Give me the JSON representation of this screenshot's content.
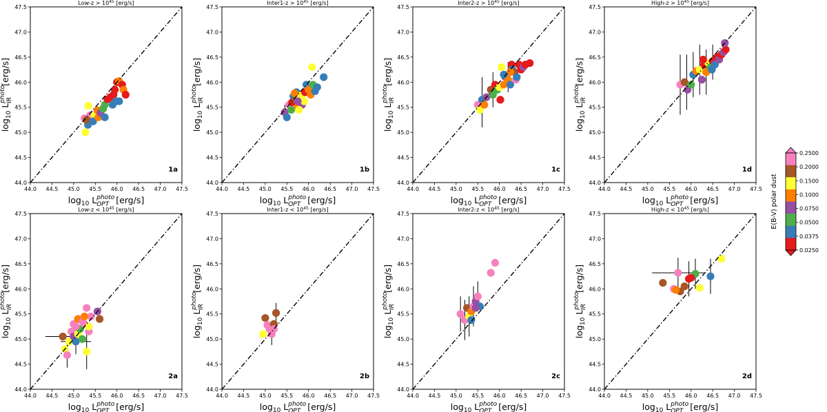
{
  "axes": {
    "xlabel_main": "log",
    "xlabel_sub": "10",
    "xlabel_L": " L",
    "xlabel_sup": "photo",
    "xlabel_subscript": "OPT",
    "xlabel_unit": " [erg/s]",
    "ylabel_main": "log",
    "ylabel_sub": "10",
    "ylabel_L": " L",
    "ylabel_sup": "photo",
    "ylabel_subscript": "IR",
    "ylabel_unit": " [erg/s]"
  },
  "colorbar": {
    "label": "E(B-V) polar dust",
    "ticks": [
      "0.2500",
      "0.2000",
      "0.1500",
      "0.1000",
      "0.0750",
      "0.0500",
      "0.0375",
      "0.0250"
    ],
    "colors": [
      "#f781bf",
      "#a65628",
      "#ffff33",
      "#ff7f00",
      "#984ea3",
      "#4daf4a",
      "#377eb8",
      "#e41a1c"
    ]
  },
  "chart_data": [
    {
      "id": "1a",
      "type": "scatter",
      "title": "Low-z > 10^45 [erg/s]",
      "title_base": "Low-z > 10",
      "title_exp": "45",
      "title_unit": " [erg/s]",
      "tag": "1a",
      "xlim": [
        44.0,
        47.5
      ],
      "ylim": [
        44.0,
        47.5
      ],
      "xticks": [
        "44.0",
        "44.5",
        "45.0",
        "45.5",
        "46.0",
        "46.5",
        "47.0",
        "47.5"
      ],
      "yticks": [
        "44.0",
        "44.5",
        "45.0",
        "45.5",
        "46.0",
        "46.5",
        "47.0",
        "47.5"
      ],
      "points": [
        [
          45.27,
          45.0,
          2
        ],
        [
          45.34,
          45.53,
          2
        ],
        [
          45.25,
          45.28,
          0
        ],
        [
          45.38,
          45.34,
          0
        ],
        [
          45.33,
          45.15,
          6
        ],
        [
          45.3,
          45.25,
          1
        ],
        [
          45.48,
          45.33,
          2
        ],
        [
          45.45,
          45.22,
          6
        ],
        [
          45.55,
          45.44,
          3
        ],
        [
          45.57,
          45.3,
          3
        ],
        [
          45.62,
          45.39,
          4
        ],
        [
          45.68,
          45.47,
          5
        ],
        [
          45.72,
          45.3,
          6
        ],
        [
          45.72,
          45.55,
          5
        ],
        [
          45.78,
          45.66,
          7
        ],
        [
          45.85,
          45.7,
          7
        ],
        [
          45.9,
          45.55,
          6
        ],
        [
          45.92,
          45.75,
          7
        ],
        [
          45.95,
          45.85,
          7
        ],
        [
          46.0,
          46.0,
          7
        ],
        [
          46.05,
          46.02,
          3
        ],
        [
          46.12,
          45.95,
          7
        ],
        [
          46.15,
          45.85,
          3
        ],
        [
          46.2,
          45.75,
          7
        ],
        [
          45.98,
          45.62,
          6
        ],
        [
          46.05,
          45.62,
          6
        ]
      ],
      "errors": []
    },
    {
      "id": "1b",
      "type": "scatter",
      "title": "Inter1-z > 10^45 [erg/s]",
      "title_base": "Inter1-z > 10",
      "title_exp": "45",
      "title_unit": " [erg/s]",
      "tag": "1b",
      "xlim": [
        44.0,
        47.5
      ],
      "ylim": [
        44.0,
        47.5
      ],
      "xticks": [
        "44.0",
        "44.5",
        "45.0",
        "45.5",
        "46.0",
        "46.5",
        "47.0",
        "47.5"
      ],
      "yticks": [
        "44.0",
        "44.5",
        "45.0",
        "45.5",
        "46.0",
        "46.5",
        "47.0",
        "47.5"
      ],
      "points": [
        [
          45.45,
          45.4,
          4
        ],
        [
          45.5,
          45.3,
          6
        ],
        [
          45.55,
          45.55,
          0
        ],
        [
          45.6,
          45.45,
          5
        ],
        [
          45.62,
          45.6,
          7
        ],
        [
          45.65,
          45.72,
          6
        ],
        [
          45.7,
          45.65,
          1
        ],
        [
          45.75,
          45.5,
          3
        ],
        [
          45.72,
          45.8,
          6
        ],
        [
          45.8,
          45.7,
          2
        ],
        [
          45.85,
          45.55,
          4
        ],
        [
          45.78,
          45.45,
          2
        ],
        [
          45.85,
          45.75,
          2
        ],
        [
          45.9,
          45.62,
          2
        ],
        [
          45.92,
          45.8,
          7
        ],
        [
          45.95,
          45.95,
          6
        ],
        [
          46.0,
          45.85,
          3
        ],
        [
          46.05,
          45.75,
          3
        ],
        [
          46.08,
          46.3,
          2
        ],
        [
          46.1,
          45.95,
          5
        ],
        [
          46.15,
          45.82,
          6
        ],
        [
          46.2,
          45.9,
          6
        ],
        [
          46.35,
          46.1,
          6
        ],
        [
          45.68,
          45.78,
          3
        ],
        [
          45.75,
          45.62,
          4
        ]
      ],
      "errors": [
        [
          45.45,
          45.4,
          0,
          0.15
        ]
      ]
    },
    {
      "id": "1c",
      "type": "scatter",
      "title": "Inter2-z > 10^45 [erg/s]",
      "title_base": "Inter2-z > 10",
      "title_exp": "45",
      "title_unit": " [erg/s]",
      "tag": "1c",
      "xlim": [
        44.0,
        47.5
      ],
      "ylim": [
        44.0,
        47.5
      ],
      "xticks": [
        "44.0",
        "44.5",
        "45.0",
        "45.5",
        "46.0",
        "46.5",
        "47.0",
        "47.5"
      ],
      "yticks": [
        "44.0",
        "44.5",
        "45.0",
        "45.5",
        "46.0",
        "46.5",
        "47.0",
        "47.5"
      ],
      "points": [
        [
          45.5,
          45.55,
          0
        ],
        [
          45.55,
          45.45,
          2
        ],
        [
          45.6,
          45.65,
          6
        ],
        [
          45.65,
          45.55,
          3
        ],
        [
          45.7,
          45.7,
          4
        ],
        [
          45.8,
          45.85,
          1
        ],
        [
          45.85,
          45.75,
          5
        ],
        [
          45.9,
          45.95,
          7
        ],
        [
          45.95,
          45.85,
          5
        ],
        [
          46.0,
          45.9,
          2
        ],
        [
          46.02,
          45.65,
          7
        ],
        [
          46.05,
          46.3,
          2
        ],
        [
          46.1,
          45.95,
          3
        ],
        [
          46.15,
          46.1,
          4
        ],
        [
          46.2,
          46.05,
          3
        ],
        [
          46.25,
          45.95,
          6
        ],
        [
          46.28,
          46.35,
          7
        ],
        [
          46.3,
          46.25,
          6
        ],
        [
          46.35,
          46.2,
          1
        ],
        [
          46.38,
          46.05,
          0
        ],
        [
          46.4,
          46.1,
          6
        ],
        [
          46.45,
          46.35,
          7
        ],
        [
          46.5,
          46.25,
          7
        ],
        [
          46.55,
          46.3,
          4
        ],
        [
          46.6,
          46.35,
          7
        ],
        [
          46.7,
          46.38,
          7
        ],
        [
          46.25,
          46.2,
          3
        ],
        [
          46.1,
          46.15,
          6
        ]
      ],
      "errors": [
        [
          45.6,
          45.6,
          0,
          0.5
        ],
        [
          45.85,
          45.85,
          0,
          0.35
        ],
        [
          46.2,
          46.1,
          0,
          0.3
        ]
      ]
    },
    {
      "id": "1d",
      "type": "scatter",
      "title": "High-z > 10^45 [erg/s]",
      "title_base": "High-z > 10",
      "title_exp": "45",
      "title_unit": " [erg/s]",
      "tag": "1d",
      "xlim": [
        44.0,
        47.5
      ],
      "ylim": [
        44.0,
        47.5
      ],
      "xticks": [
        "44.0",
        "44.5",
        "45.0",
        "45.5",
        "46.0",
        "46.5",
        "47.0",
        "47.5"
      ],
      "yticks": [
        "44.0",
        "44.5",
        "45.0",
        "45.5",
        "46.0",
        "46.5",
        "47.0",
        "47.5"
      ],
      "points": [
        [
          45.75,
          45.95,
          0
        ],
        [
          45.85,
          46.0,
          1
        ],
        [
          45.92,
          45.85,
          4
        ],
        [
          46.0,
          45.95,
          5
        ],
        [
          46.05,
          46.15,
          6
        ],
        [
          46.12,
          46.22,
          3
        ],
        [
          46.2,
          46.25,
          2
        ],
        [
          46.25,
          46.05,
          4
        ],
        [
          46.3,
          46.35,
          7
        ],
        [
          46.35,
          46.2,
          3
        ],
        [
          46.4,
          46.38,
          2
        ],
        [
          46.45,
          46.3,
          5
        ],
        [
          46.5,
          46.42,
          7
        ],
        [
          46.55,
          46.35,
          6
        ],
        [
          46.6,
          46.5,
          7
        ],
        [
          46.65,
          46.45,
          4
        ],
        [
          46.7,
          46.55,
          7
        ],
        [
          46.75,
          46.6,
          4
        ],
        [
          46.8,
          46.65,
          7
        ],
        [
          46.78,
          46.78,
          4
        ],
        [
          46.28,
          46.45,
          7
        ],
        [
          46.48,
          46.25,
          6
        ]
      ],
      "errors": [
        [
          45.75,
          45.95,
          0,
          0.6
        ],
        [
          45.9,
          46.0,
          0,
          0.55
        ],
        [
          46.05,
          46.15,
          0,
          0.45
        ],
        [
          46.2,
          46.25,
          0,
          0.5
        ],
        [
          46.35,
          46.2,
          0,
          0.45
        ],
        [
          46.5,
          46.4,
          0,
          0.35
        ]
      ]
    },
    {
      "id": "2a",
      "type": "scatter",
      "title": "Low-z < 10^45 [erg/s]",
      "title_base": "Low-z < 10",
      "title_exp": "45",
      "title_unit": " [erg/s]",
      "tag": "2a",
      "xlim": [
        44.0,
        47.5
      ],
      "ylim": [
        44.0,
        47.5
      ],
      "xticks": [
        "44.0",
        "44.5",
        "45.0",
        "45.5",
        "46.0",
        "46.5",
        "47.0",
        "47.5"
      ],
      "yticks": [
        "44.0",
        "44.5",
        "45.0",
        "45.5",
        "46.0",
        "46.5",
        "47.0",
        "47.5"
      ],
      "points": [
        [
          44.75,
          45.05,
          1
        ],
        [
          44.8,
          44.8,
          2
        ],
        [
          44.85,
          44.68,
          0
        ],
        [
          44.9,
          44.95,
          2
        ],
        [
          44.95,
          45.15,
          0
        ],
        [
          45.0,
          45.05,
          4
        ],
        [
          45.0,
          45.3,
          0
        ],
        [
          45.05,
          44.95,
          6
        ],
        [
          45.1,
          45.1,
          2
        ],
        [
          45.1,
          45.4,
          3
        ],
        [
          45.15,
          45.2,
          5
        ],
        [
          45.2,
          45.0,
          5
        ],
        [
          45.2,
          45.35,
          0
        ],
        [
          45.25,
          45.3,
          0
        ],
        [
          45.3,
          45.62,
          0
        ],
        [
          45.35,
          45.15,
          0
        ],
        [
          45.3,
          44.75,
          2
        ],
        [
          45.35,
          45.25,
          2
        ],
        [
          45.4,
          45.45,
          0
        ],
        [
          45.55,
          45.55,
          4
        ],
        [
          45.6,
          45.4,
          1
        ],
        [
          45.05,
          45.25,
          0
        ],
        [
          45.25,
          45.45,
          3
        ]
      ],
      "errors": [
        [
          44.75,
          45.05,
          0.4,
          0
        ],
        [
          45.05,
          44.95,
          0.35,
          0.25
        ],
        [
          45.3,
          44.75,
          0,
          0.35
        ],
        [
          44.85,
          44.68,
          0,
          0.25
        ]
      ]
    },
    {
      "id": "2b",
      "type": "scatter",
      "title": "Inter1-z < 10^45 [erg/s]",
      "title_base": "Inter1-z < 10",
      "title_exp": "45",
      "title_unit": " [erg/s]",
      "tag": "2b",
      "xlim": [
        44.0,
        47.5
      ],
      "ylim": [
        44.0,
        47.5
      ],
      "xticks": [
        "44.0",
        "44.5",
        "45.0",
        "45.5",
        "46.0",
        "46.5",
        "47.0",
        "47.5"
      ],
      "yticks": [
        "44.0",
        "44.5",
        "45.0",
        "45.5",
        "46.0",
        "46.5",
        "47.0",
        "47.5"
      ],
      "points": [
        [
          44.95,
          45.1,
          2
        ],
        [
          45.0,
          45.42,
          1
        ],
        [
          45.05,
          45.28,
          0
        ],
        [
          45.1,
          45.2,
          0
        ],
        [
          45.15,
          45.1,
          0
        ],
        [
          45.2,
          45.3,
          1
        ],
        [
          45.25,
          45.52,
          1
        ],
        [
          45.2,
          45.2,
          0
        ]
      ],
      "errors": [
        [
          45.15,
          45.1,
          0,
          0.22
        ],
        [
          45.25,
          45.52,
          0,
          0.2
        ]
      ]
    },
    {
      "id": "2c",
      "type": "scatter",
      "title": "Inter2-z < 10^45 [erg/s]",
      "title_base": "Inter2-z < 10",
      "title_exp": "45",
      "title_unit": " [erg/s]",
      "tag": "2c",
      "xlim": [
        44.0,
        47.5
      ],
      "ylim": [
        44.0,
        47.5
      ],
      "xticks": [
        "44.0",
        "44.5",
        "45.0",
        "45.5",
        "46.0",
        "46.5",
        "47.0",
        "47.5"
      ],
      "yticks": [
        "44.0",
        "44.5",
        "45.0",
        "45.5",
        "46.0",
        "46.5",
        "47.0",
        "47.5"
      ],
      "points": [
        [
          45.1,
          45.5,
          0
        ],
        [
          45.2,
          45.38,
          0
        ],
        [
          45.25,
          45.62,
          1
        ],
        [
          45.3,
          45.45,
          2
        ],
        [
          45.35,
          45.55,
          3
        ],
        [
          45.4,
          45.65,
          0
        ],
        [
          45.45,
          45.75,
          4
        ],
        [
          45.5,
          45.85,
          0
        ],
        [
          45.55,
          45.65,
          6
        ],
        [
          45.45,
          45.62,
          4
        ],
        [
          45.8,
          46.32,
          0
        ],
        [
          45.9,
          46.52,
          0
        ],
        [
          45.35,
          45.38,
          6
        ]
      ],
      "errors": [
        [
          45.1,
          45.5,
          0,
          0.35
        ],
        [
          45.2,
          45.38,
          0,
          0.4
        ],
        [
          45.3,
          45.45,
          0,
          0.4
        ],
        [
          45.4,
          45.65,
          0,
          0.4
        ],
        [
          45.5,
          45.85,
          0,
          0.3
        ]
      ]
    },
    {
      "id": "2d",
      "type": "scatter",
      "title": "High-z < 10^45 [erg/s]",
      "title_base": "High-z < 10",
      "title_exp": "45",
      "title_unit": " [erg/s]",
      "tag": "2d",
      "xlim": [
        44.0,
        47.5
      ],
      "ylim": [
        44.0,
        47.5
      ],
      "xticks": [
        "44.0",
        "44.5",
        "45.0",
        "45.5",
        "46.0",
        "46.5",
        "47.0",
        "47.5"
      ],
      "yticks": [
        "44.0",
        "44.5",
        "45.0",
        "45.5",
        "46.0",
        "46.5",
        "47.0",
        "47.5"
      ],
      "points": [
        [
          45.35,
          46.12,
          1
        ],
        [
          45.6,
          46.0,
          0
        ],
        [
          45.75,
          45.95,
          1
        ],
        [
          45.7,
          46.32,
          0
        ],
        [
          45.85,
          46.05,
          1
        ],
        [
          45.95,
          46.2,
          7
        ],
        [
          46.1,
          46.3,
          5
        ],
        [
          46.2,
          46.02,
          2
        ],
        [
          46.45,
          46.25,
          6
        ],
        [
          46.7,
          46.6,
          2
        ],
        [
          46.0,
          46.22,
          7
        ],
        [
          45.65,
          45.98,
          3
        ]
      ],
      "errors": [
        [
          45.7,
          46.32,
          0.6,
          0.3
        ],
        [
          45.95,
          46.2,
          0,
          0.35
        ],
        [
          46.1,
          46.3,
          0,
          0.3
        ],
        [
          46.45,
          46.25,
          0,
          0.35
        ]
      ]
    }
  ]
}
